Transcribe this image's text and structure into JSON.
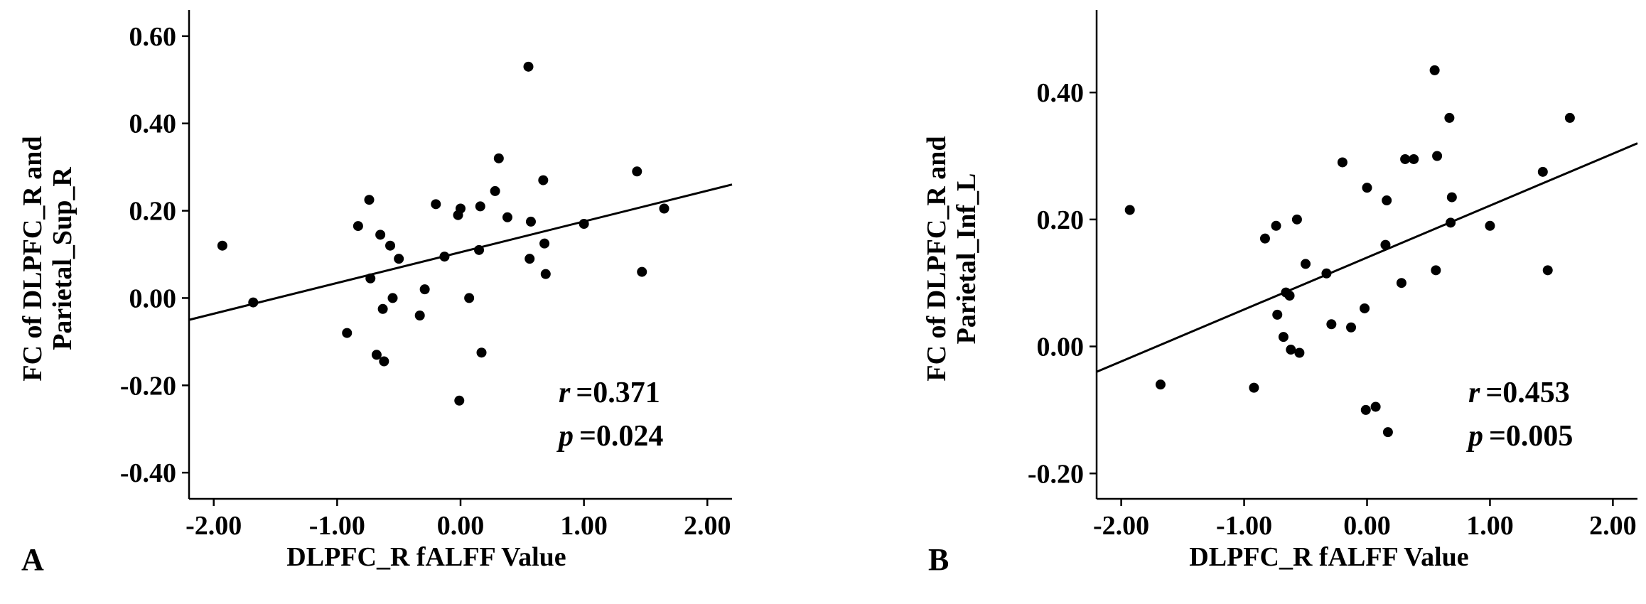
{
  "chart_data": [
    {
      "type": "scatter",
      "panel_label": "A",
      "xlabel": "DLPFC_R fALFF Value",
      "ylabel_lines": [
        "FC of DLPFC_R and",
        "Parietal_Sup_R"
      ],
      "xlim": [
        -2.2,
        2.2
      ],
      "ylim": [
        -0.46,
        0.66
      ],
      "x_ticks": [
        -2.0,
        -1.0,
        0.0,
        1.0,
        2.0
      ],
      "x_tick_labels": [
        "-2.00",
        "-1.00",
        "0.00",
        "1.00",
        "2.00"
      ],
      "y_ticks": [
        -0.4,
        -0.2,
        0.0,
        0.2,
        0.4,
        0.6
      ],
      "y_tick_labels": [
        "-0.40",
        "-0.20",
        "0.00",
        "0.20",
        "0.40",
        "0.60"
      ],
      "stats": {
        "r_symbol": "r",
        "r_value": "=0.371",
        "p_symbol": "p",
        "p_value": "=0.024"
      },
      "fit_line": {
        "x": [
          -2.2,
          2.2
        ],
        "y": [
          -0.05,
          0.26
        ]
      },
      "points": [
        {
          "x": -1.93,
          "y": 0.12
        },
        {
          "x": -1.68,
          "y": -0.01
        },
        {
          "x": -0.92,
          "y": -0.08
        },
        {
          "x": -0.83,
          "y": 0.165
        },
        {
          "x": -0.74,
          "y": 0.225
        },
        {
          "x": -0.73,
          "y": 0.045
        },
        {
          "x": -0.68,
          "y": -0.13
        },
        {
          "x": -0.65,
          "y": 0.145
        },
        {
          "x": -0.63,
          "y": -0.025
        },
        {
          "x": -0.62,
          "y": -0.145
        },
        {
          "x": -0.57,
          "y": 0.12
        },
        {
          "x": -0.55,
          "y": 0.0
        },
        {
          "x": -0.5,
          "y": 0.09
        },
        {
          "x": -0.33,
          "y": -0.04
        },
        {
          "x": -0.29,
          "y": 0.02
        },
        {
          "x": -0.2,
          "y": 0.215
        },
        {
          "x": -0.13,
          "y": 0.095
        },
        {
          "x": -0.02,
          "y": 0.19
        },
        {
          "x": 0.0,
          "y": 0.205
        },
        {
          "x": -0.01,
          "y": -0.235
        },
        {
          "x": 0.07,
          "y": -0.0
        },
        {
          "x": 0.15,
          "y": 0.11
        },
        {
          "x": 0.16,
          "y": 0.21
        },
        {
          "x": 0.17,
          "y": -0.125
        },
        {
          "x": 0.28,
          "y": 0.245
        },
        {
          "x": 0.31,
          "y": 0.32
        },
        {
          "x": 0.38,
          "y": 0.185
        },
        {
          "x": 0.55,
          "y": 0.53
        },
        {
          "x": 0.57,
          "y": 0.175
        },
        {
          "x": 0.56,
          "y": 0.09
        },
        {
          "x": 0.67,
          "y": 0.27
        },
        {
          "x": 0.68,
          "y": 0.125
        },
        {
          "x": 0.69,
          "y": 0.055
        },
        {
          "x": 1.0,
          "y": 0.17
        },
        {
          "x": 1.43,
          "y": 0.29
        },
        {
          "x": 1.47,
          "y": 0.06
        },
        {
          "x": 1.65,
          "y": 0.205
        }
      ]
    },
    {
      "type": "scatter",
      "panel_label": "B",
      "xlabel": "DLPFC_R fALFF Value",
      "ylabel_lines": [
        "FC of DLPFC_R and",
        "Parietal_Inf_L"
      ],
      "xlim": [
        -2.2,
        2.2
      ],
      "ylim": [
        -0.24,
        0.53
      ],
      "x_ticks": [
        -2.0,
        -1.0,
        0.0,
        1.0,
        2.0
      ],
      "x_tick_labels": [
        "-2.00",
        "-1.00",
        "0.00",
        "1.00",
        "2.00"
      ],
      "y_ticks": [
        -0.2,
        0.0,
        0.2,
        0.4
      ],
      "y_tick_labels": [
        "-0.20",
        "0.00",
        "0.20",
        "0.40"
      ],
      "stats": {
        "r_symbol": "r",
        "r_value": "=0.453",
        "p_symbol": "p",
        "p_value": "=0.005"
      },
      "fit_line": {
        "x": [
          -2.2,
          2.2
        ],
        "y": [
          -0.04,
          0.32
        ]
      },
      "points": [
        {
          "x": -1.93,
          "y": 0.215
        },
        {
          "x": -1.68,
          "y": -0.06
        },
        {
          "x": -0.92,
          "y": -0.065
        },
        {
          "x": -0.83,
          "y": 0.17
        },
        {
          "x": -0.74,
          "y": 0.19
        },
        {
          "x": -0.73,
          "y": 0.05
        },
        {
          "x": -0.68,
          "y": 0.015
        },
        {
          "x": -0.66,
          "y": 0.085
        },
        {
          "x": -0.63,
          "y": 0.08
        },
        {
          "x": -0.62,
          "y": -0.005
        },
        {
          "x": -0.57,
          "y": 0.2
        },
        {
          "x": -0.55,
          "y": -0.01
        },
        {
          "x": -0.5,
          "y": 0.13
        },
        {
          "x": -0.33,
          "y": 0.115
        },
        {
          "x": -0.29,
          "y": 0.035
        },
        {
          "x": -0.2,
          "y": 0.29
        },
        {
          "x": -0.13,
          "y": 0.03
        },
        {
          "x": -0.02,
          "y": 0.06
        },
        {
          "x": 0.0,
          "y": 0.25
        },
        {
          "x": -0.01,
          "y": -0.1
        },
        {
          "x": 0.07,
          "y": -0.095
        },
        {
          "x": 0.15,
          "y": 0.16
        },
        {
          "x": 0.16,
          "y": 0.23
        },
        {
          "x": 0.17,
          "y": -0.135
        },
        {
          "x": 0.28,
          "y": 0.1
        },
        {
          "x": 0.31,
          "y": 0.295
        },
        {
          "x": 0.38,
          "y": 0.295
        },
        {
          "x": 0.55,
          "y": 0.435
        },
        {
          "x": 0.57,
          "y": 0.3
        },
        {
          "x": 0.56,
          "y": 0.12
        },
        {
          "x": 0.67,
          "y": 0.36
        },
        {
          "x": 0.68,
          "y": 0.195
        },
        {
          "x": 0.69,
          "y": 0.235
        },
        {
          "x": 1.0,
          "y": 0.19
        },
        {
          "x": 1.43,
          "y": 0.275
        },
        {
          "x": 1.47,
          "y": 0.12
        },
        {
          "x": 1.65,
          "y": 0.36
        }
      ]
    }
  ]
}
